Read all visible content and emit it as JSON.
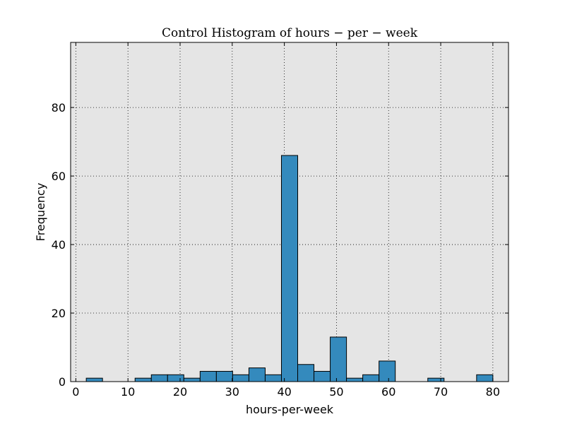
{
  "colors": {
    "plot_background": "#e5e5e5",
    "bar_fill": "#348abd",
    "bar_edge": "#000000"
  },
  "chart_data": {
    "type": "bar",
    "title": "Control Histogram of hours − per − week",
    "xlabel": "hours-per-week",
    "ylabel": "Frequency",
    "xlim": [
      -1,
      83
    ],
    "ylim": [
      0,
      99
    ],
    "xticks": [
      0,
      10,
      20,
      30,
      40,
      50,
      60,
      70,
      80
    ],
    "yticks": [
      0,
      20,
      40,
      60,
      80
    ],
    "grid": true,
    "bins": [
      {
        "start": 2.0,
        "end": 5.12,
        "count": 1
      },
      {
        "start": 5.12,
        "end": 8.24,
        "count": 0
      },
      {
        "start": 8.24,
        "end": 11.36,
        "count": 0
      },
      {
        "start": 11.36,
        "end": 14.48,
        "count": 1
      },
      {
        "start": 14.48,
        "end": 17.6,
        "count": 2
      },
      {
        "start": 17.6,
        "end": 20.72,
        "count": 2
      },
      {
        "start": 20.72,
        "end": 23.84,
        "count": 1
      },
      {
        "start": 23.84,
        "end": 26.96,
        "count": 3
      },
      {
        "start": 26.96,
        "end": 30.08,
        "count": 3
      },
      {
        "start": 30.08,
        "end": 33.2,
        "count": 2
      },
      {
        "start": 33.2,
        "end": 36.32,
        "count": 4
      },
      {
        "start": 36.32,
        "end": 39.44,
        "count": 2
      },
      {
        "start": 39.44,
        "end": 42.56,
        "count": 66
      },
      {
        "start": 42.56,
        "end": 45.68,
        "count": 5
      },
      {
        "start": 45.68,
        "end": 48.8,
        "count": 3
      },
      {
        "start": 48.8,
        "end": 51.92,
        "count": 13
      },
      {
        "start": 51.92,
        "end": 55.04,
        "count": 1
      },
      {
        "start": 55.04,
        "end": 58.16,
        "count": 2
      },
      {
        "start": 58.16,
        "end": 61.28,
        "count": 6
      },
      {
        "start": 61.28,
        "end": 64.4,
        "count": 0
      },
      {
        "start": 64.4,
        "end": 67.52,
        "count": 0
      },
      {
        "start": 67.52,
        "end": 70.64,
        "count": 1
      },
      {
        "start": 70.64,
        "end": 73.76,
        "count": 0
      },
      {
        "start": 73.76,
        "end": 76.88,
        "count": 0
      },
      {
        "start": 76.88,
        "end": 80.0,
        "count": 2
      }
    ]
  }
}
